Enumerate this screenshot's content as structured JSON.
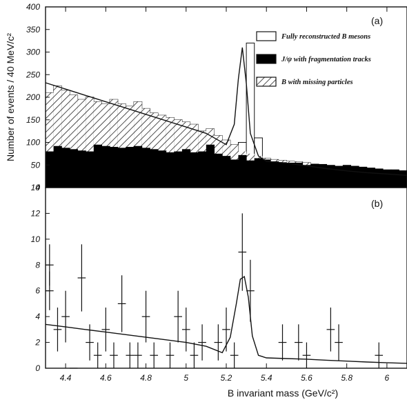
{
  "chart_data": [
    {
      "type": "bar",
      "panel_label": "(a)",
      "ylabel": "Number of events / 40 MeV/c²",
      "ylim": [
        0,
        400
      ],
      "xlim": [
        4.3,
        6.1
      ],
      "y_ticks": [
        "0",
        "50",
        "100",
        "150",
        "200",
        "250",
        "300",
        "350",
        "400"
      ],
      "legend_position": "top-right",
      "legend": [
        {
          "label": "Fully reconstructed B mesons",
          "style": "open"
        },
        {
          "label": "J/ψ with fragmentation tracks",
          "style": "solid"
        },
        {
          "label": "B with missing particles",
          "style": "hatched"
        }
      ],
      "bin_width": 0.04,
      "bin_start": 4.3,
      "series": [
        {
          "name": "J/ψ with fragmentation tracks",
          "values": [
            80,
            92,
            88,
            85,
            82,
            80,
            95,
            92,
            90,
            88,
            90,
            92,
            88,
            85,
            82,
            78,
            80,
            85,
            78,
            80,
            95,
            75,
            70,
            62,
            72,
            60,
            65,
            62,
            58,
            56,
            55,
            55,
            50,
            52,
            52,
            50,
            48,
            50,
            48,
            46,
            44,
            42,
            40,
            40,
            38
          ]
        },
        {
          "name": "B with missing particles",
          "values": [
            210,
            225,
            215,
            205,
            195,
            200,
            190,
            185,
            195,
            185,
            180,
            190,
            175,
            165,
            160,
            155,
            150,
            145,
            140,
            125,
            130,
            115,
            105,
            95,
            80,
            75,
            70,
            68,
            65,
            62,
            60,
            58,
            55,
            52,
            50,
            48,
            46,
            44,
            42,
            40,
            38,
            36,
            34,
            32,
            30
          ]
        },
        {
          "name": "Fully reconstructed B mesons",
          "values": [
            210,
            225,
            215,
            205,
            195,
            200,
            190,
            185,
            195,
            185,
            180,
            190,
            175,
            165,
            160,
            155,
            150,
            145,
            140,
            125,
            130,
            115,
            105,
            95,
            100,
            320,
            110,
            65,
            62,
            60,
            58,
            57,
            55,
            52,
            50,
            48,
            46,
            44,
            42,
            40,
            38,
            36,
            34,
            32,
            30
          ]
        }
      ],
      "fit_curve": {
        "x": [
          4.3,
          4.4,
          4.5,
          4.6,
          4.7,
          4.8,
          4.9,
          5.0,
          5.1,
          5.2,
          5.24,
          5.26,
          5.28,
          5.3,
          5.32,
          5.36,
          5.4,
          5.5,
          5.6,
          5.7,
          5.8,
          5.9,
          6.0,
          6.1
        ],
        "y": [
          232,
          218,
          204,
          190,
          176,
          162,
          148,
          134,
          120,
          95,
          140,
          240,
          310,
          230,
          120,
          70,
          58,
          54,
          48,
          42,
          37,
          33,
          30,
          27
        ]
      }
    },
    {
      "type": "scatter",
      "panel_label": "(b)",
      "xlabel": "B invariant mass (GeV/c²)",
      "ylim": [
        0,
        14
      ],
      "xlim": [
        4.3,
        6.1
      ],
      "x_ticks": [
        "4.4",
        "4.6",
        "4.8",
        "5",
        "5.2",
        "5.4",
        "5.6",
        "5.8",
        "6"
      ],
      "y_ticks": [
        "0",
        "2",
        "4",
        "6",
        "8",
        "10",
        "12",
        "14"
      ],
      "points": [
        {
          "x": 4.32,
          "y": 8.0,
          "err": 1.6
        },
        {
          "x": 4.32,
          "y": 6.0,
          "err": 1.5
        },
        {
          "x": 4.36,
          "y": 3.0,
          "err": 1.7
        },
        {
          "x": 4.4,
          "y": 4.0,
          "err": 2.0
        },
        {
          "x": 4.44,
          "y": 0.0,
          "err": 0.0
        },
        {
          "x": 4.48,
          "y": 7.0,
          "err": 2.6
        },
        {
          "x": 4.52,
          "y": 2.0,
          "err": 1.4
        },
        {
          "x": 4.56,
          "y": 1.0,
          "err": 1.0
        },
        {
          "x": 4.6,
          "y": 3.0,
          "err": 1.7
        },
        {
          "x": 4.64,
          "y": 1.0,
          "err": 1.0
        },
        {
          "x": 4.68,
          "y": 5.0,
          "err": 2.2
        },
        {
          "x": 4.72,
          "y": 1.0,
          "err": 1.0
        },
        {
          "x": 4.76,
          "y": 1.0,
          "err": 1.0
        },
        {
          "x": 4.8,
          "y": 4.0,
          "err": 2.0
        },
        {
          "x": 4.84,
          "y": 1.0,
          "err": 1.0
        },
        {
          "x": 4.92,
          "y": 1.0,
          "err": 1.0
        },
        {
          "x": 4.96,
          "y": 4.0,
          "err": 2.0
        },
        {
          "x": 5.0,
          "y": 3.0,
          "err": 1.7
        },
        {
          "x": 5.04,
          "y": 1.0,
          "err": 1.0
        },
        {
          "x": 5.08,
          "y": 2.0,
          "err": 1.4
        },
        {
          "x": 5.16,
          "y": 2.0,
          "err": 1.4
        },
        {
          "x": 5.2,
          "y": 3.0,
          "err": 1.7
        },
        {
          "x": 5.24,
          "y": 1.0,
          "err": 1.0
        },
        {
          "x": 5.28,
          "y": 9.0,
          "err": 3.0
        },
        {
          "x": 5.32,
          "y": 6.0,
          "err": 2.4
        },
        {
          "x": 5.48,
          "y": 2.0,
          "err": 1.4
        },
        {
          "x": 5.56,
          "y": 2.0,
          "err": 1.4
        },
        {
          "x": 5.6,
          "y": 1.0,
          "err": 1.0
        },
        {
          "x": 5.72,
          "y": 3.0,
          "err": 1.7
        },
        {
          "x": 5.76,
          "y": 2.0,
          "err": 1.4
        },
        {
          "x": 5.96,
          "y": 1.0,
          "err": 1.0
        }
      ],
      "fit_curve": {
        "x": [
          4.3,
          4.4,
          4.5,
          4.6,
          4.7,
          4.8,
          4.9,
          5.0,
          5.1,
          5.18,
          5.22,
          5.25,
          5.27,
          5.29,
          5.31,
          5.33,
          5.36,
          5.4,
          5.5,
          5.6,
          5.7,
          5.8,
          5.9,
          6.0,
          6.1
        ],
        "y": [
          3.4,
          3.2,
          3.0,
          2.8,
          2.6,
          2.4,
          2.2,
          2.0,
          1.7,
          1.2,
          2.4,
          5.0,
          6.9,
          7.1,
          5.5,
          2.5,
          1.0,
          0.8,
          0.75,
          0.7,
          0.62,
          0.55,
          0.48,
          0.42,
          0.38
        ]
      }
    }
  ]
}
